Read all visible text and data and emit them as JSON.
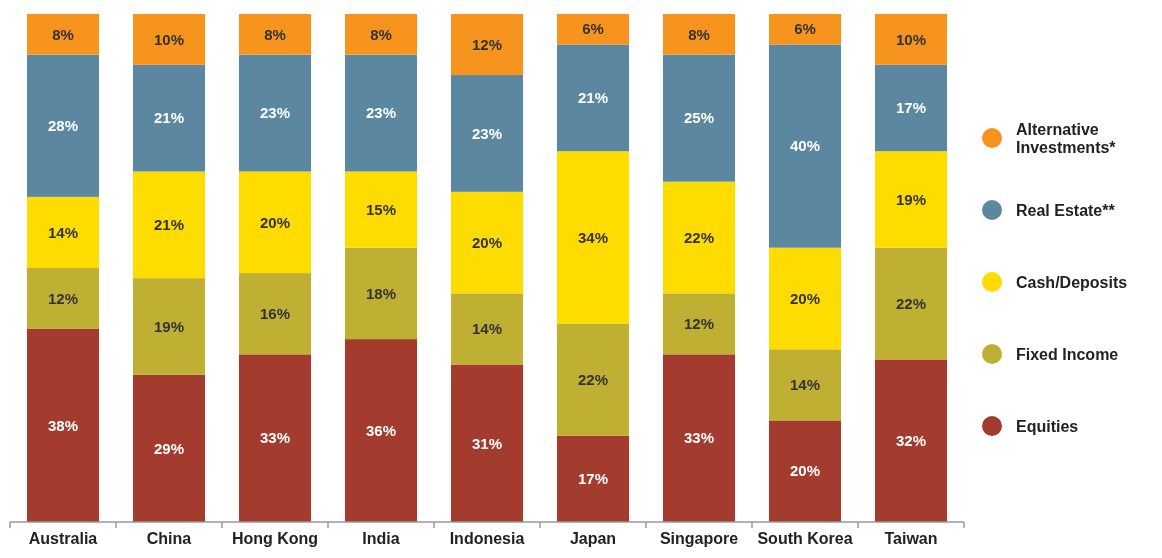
{
  "chart_data": {
    "type": "bar",
    "stacked": true,
    "categories": [
      "Australia",
      "China",
      "Hong Kong",
      "India",
      "Indonesia",
      "Japan",
      "Singapore",
      "South Korea",
      "Taiwan"
    ],
    "series": [
      {
        "name": "Equities",
        "color": "#a33b2f",
        "values": [
          38,
          29,
          33,
          36,
          31,
          17,
          33,
          20,
          32
        ],
        "value_labels": [
          "38%",
          "29%",
          "33%",
          "36%",
          "31%",
          "17%",
          "33%",
          "20%",
          "32%"
        ]
      },
      {
        "name": "Fixed Income",
        "color": "#bfb033",
        "values": [
          12,
          19,
          16,
          18,
          14,
          22,
          12,
          14,
          22
        ],
        "value_labels": [
          "12%",
          "19%",
          "16%",
          "18%",
          "14%",
          "22%",
          "12%",
          "14%",
          "22%"
        ]
      },
      {
        "name": "Cash/Deposits",
        "color": "#ffdc00",
        "values": [
          14,
          21,
          20,
          15,
          20,
          34,
          22,
          20,
          19
        ],
        "value_labels": [
          "14%",
          "21%",
          "20%",
          "15%",
          "20%",
          "34%",
          "22%",
          "20%",
          "19%"
        ]
      },
      {
        "name": "Real Estate**",
        "color": "#5b88a0",
        "values": [
          28,
          21,
          23,
          23,
          23,
          21,
          25,
          40,
          17
        ],
        "value_labels": [
          "28%",
          "21%",
          "23%",
          "23%",
          "23%",
          "21%",
          "25%",
          "40%",
          "17%"
        ]
      },
      {
        "name": "Alternative Investments*",
        "color": "#f7941d",
        "values": [
          8,
          10,
          8,
          8,
          12,
          6,
          8,
          6,
          10
        ],
        "value_labels": [
          "8%",
          "10%",
          "8%",
          "8%",
          "12%",
          "6%",
          "8%",
          "6%",
          "10%"
        ]
      }
    ],
    "legend": "right"
  }
}
